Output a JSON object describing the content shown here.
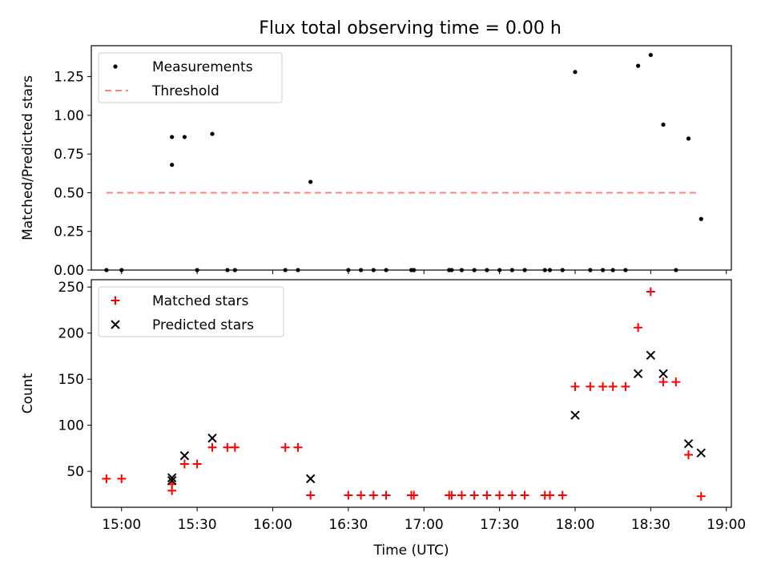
{
  "figure_title": "Flux total observing time = 0.00 h",
  "colors": {
    "measurements": "#000000",
    "threshold": "#ff8080",
    "matched": "#ff0000",
    "predicted": "#000000",
    "axes": "#000000"
  },
  "chart_data": [
    {
      "type": "scatter",
      "title": "Flux total observing time = 0.00 h",
      "xlabel": "",
      "ylabel": "Matched/Predicted stars",
      "xlim": [
        "14:48",
        "19:02"
      ],
      "ylim": [
        0,
        1.45
      ],
      "yticks": [
        0.0,
        0.25,
        0.5,
        0.75,
        1.0,
        1.25
      ],
      "ytick_labels": [
        "0.00",
        "0.25",
        "0.50",
        "0.75",
        "1.00",
        "1.25"
      ],
      "xticks": [
        "15:00",
        "15:30",
        "16:00",
        "16:30",
        "17:00",
        "17:30",
        "18:00",
        "18:30",
        "19:00"
      ],
      "legend_position": "upper-left",
      "grid": false,
      "series": [
        {
          "name": "Measurements",
          "kind": "points",
          "x": [
            "14:54",
            "15:00",
            "15:20",
            "15:20",
            "15:25",
            "15:30",
            "15:36",
            "15:42",
            "15:45",
            "16:05",
            "16:10",
            "16:15",
            "16:30",
            "16:35",
            "16:40",
            "16:45",
            "16:55",
            "16:56",
            "17:10",
            "17:11",
            "17:15",
            "17:20",
            "17:25",
            "17:30",
            "17:35",
            "17:40",
            "17:48",
            "17:50",
            "17:55",
            "18:00",
            "18:06",
            "18:11",
            "18:15",
            "18:20",
            "18:25",
            "18:30",
            "18:35",
            "18:40",
            "18:45",
            "18:50"
          ],
          "y": [
            0,
            0,
            0.68,
            0.86,
            0.86,
            0,
            0.88,
            0,
            0,
            0,
            0,
            0.57,
            0,
            0,
            0,
            0,
            0,
            0,
            0,
            0,
            0,
            0,
            0,
            0,
            0,
            0,
            0,
            0,
            0,
            1.28,
            0,
            0,
            0,
            0,
            1.32,
            1.39,
            0.94,
            0,
            0.85,
            0.33
          ]
        },
        {
          "name": "Threshold",
          "kind": "dashed-line",
          "x": [
            "14:54",
            "18:48"
          ],
          "y": [
            0.5,
            0.5
          ]
        }
      ]
    },
    {
      "type": "scatter",
      "title": "",
      "xlabel": "Time (UTC)",
      "ylabel": "Count",
      "xlim": [
        "14:48",
        "19:02"
      ],
      "ylim": [
        11,
        258
      ],
      "yticks": [
        50,
        100,
        150,
        200,
        250
      ],
      "ytick_labels": [
        "50",
        "100",
        "150",
        "200",
        "250"
      ],
      "xticks": [
        "15:00",
        "15:30",
        "16:00",
        "16:30",
        "17:00",
        "17:30",
        "18:00",
        "18:30",
        "19:00"
      ],
      "xtick_labels": [
        "15:00",
        "15:30",
        "16:00",
        "16:30",
        "17:00",
        "17:30",
        "18:00",
        "18:30",
        "19:00"
      ],
      "legend_position": "upper-left",
      "grid": false,
      "series": [
        {
          "name": "Matched stars",
          "marker": "plus",
          "x": [
            "14:54",
            "15:00",
            "15:20",
            "15:20",
            "15:25",
            "15:30",
            "15:36",
            "15:42",
            "15:45",
            "16:05",
            "16:10",
            "16:15",
            "16:30",
            "16:35",
            "16:40",
            "16:45",
            "16:55",
            "16:56",
            "17:10",
            "17:11",
            "17:15",
            "17:20",
            "17:25",
            "17:30",
            "17:35",
            "17:40",
            "17:48",
            "17:50",
            "17:55",
            "18:00",
            "18:06",
            "18:11",
            "18:15",
            "18:20",
            "18:25",
            "18:30",
            "18:35",
            "18:40",
            "18:45",
            "18:50"
          ],
          "y": [
            42,
            42,
            29,
            36,
            58,
            58,
            76,
            76,
            76,
            76,
            76,
            24,
            24,
            24,
            24,
            24,
            24,
            24,
            24,
            24,
            24,
            24,
            24,
            24,
            24,
            24,
            24,
            24,
            24,
            142,
            142,
            142,
            142,
            142,
            206,
            245,
            147,
            147,
            68,
            23
          ]
        },
        {
          "name": "Predicted stars",
          "marker": "x",
          "x": [
            "15:20",
            "15:20",
            "15:25",
            "15:36",
            "16:15",
            "18:00",
            "18:25",
            "18:30",
            "18:35",
            "18:45",
            "18:50"
          ],
          "y": [
            40,
            43,
            67,
            86,
            42,
            111,
            156,
            176,
            156,
            80,
            70
          ]
        }
      ]
    }
  ]
}
